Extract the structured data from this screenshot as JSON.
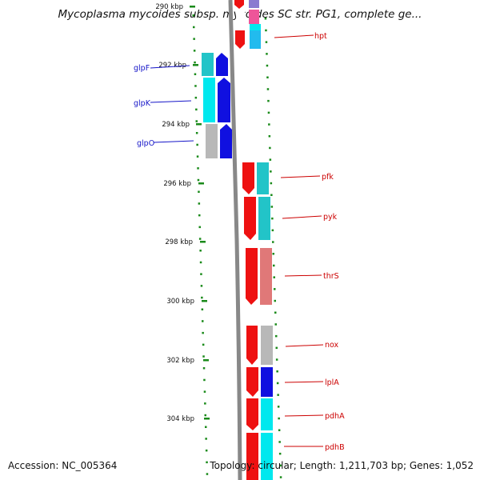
{
  "title": "Mycoplasma mycoides subsp. mycoides SC str. PG1, complete ge...",
  "footer": {
    "accession": "Accession: NC_005364",
    "topology": "Topology: circular; Length: 1,211,703 bp; Genes: 1,052"
  },
  "scale_labels": [
    "290 kbp",
    "292 kbp",
    "294 kbp",
    "296 kbp",
    "298 kbp",
    "300 kbp",
    "302 kbp",
    "304 kbp"
  ],
  "genes_left": [
    {
      "name": "glpF",
      "color": "#1515c8"
    },
    {
      "name": "glpK",
      "color": "#1515c8"
    },
    {
      "name": "glpO",
      "color": "#1515c8"
    }
  ],
  "genes_right": [
    {
      "name": "hpt",
      "color": "#cc0000"
    },
    {
      "name": "pfk",
      "color": "#cc0000"
    },
    {
      "name": "pyk",
      "color": "#cc0000"
    },
    {
      "name": "thrS",
      "color": "#cc0000"
    },
    {
      "name": "nox",
      "color": "#cc0000"
    },
    {
      "name": "lplA",
      "color": "#cc0000"
    },
    {
      "name": "pdhA",
      "color": "#cc0000"
    },
    {
      "name": "pdhB",
      "color": "#cc0000"
    }
  ],
  "colors": {
    "red": "#ee1111",
    "blue": "#1010e0",
    "cyan": "#00e8ee",
    "teal": "#22c4c8",
    "gray": "#b8b8b8",
    "salmon": "#e07878",
    "backbone": "#888888",
    "tick": "#1a8a1a"
  }
}
